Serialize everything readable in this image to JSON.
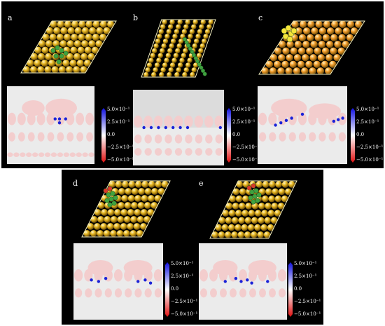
{
  "panels": [
    {
      "id": "a",
      "label": "a",
      "metal": "gold",
      "adsorbate": "green-cluster"
    },
    {
      "id": "b",
      "label": "b",
      "metal": "gold",
      "adsorbate": "green-chain"
    },
    {
      "id": "c",
      "label": "c",
      "metal": "orange",
      "adsorbate": "yellow-cluster"
    },
    {
      "id": "d",
      "label": "d",
      "metal": "gold",
      "adsorbate": "green-red-cluster"
    },
    {
      "id": "e",
      "label": "e",
      "metal": "gold",
      "adsorbate": "green-red-cluster"
    }
  ],
  "colorbar": {
    "ticks": [
      "5.0×10⁻¹",
      "2.5×10⁻¹",
      "0.0",
      "−2.5×10⁻¹",
      "−5.0×10⁻¹"
    ],
    "colors": {
      "max": "#1010e0",
      "mid": "#ffffff",
      "min": "#e01010"
    }
  },
  "colors": {
    "background": "#000000",
    "gold": "#e8b820",
    "orange": "#f09a28",
    "adsorbate_green": "#3fa23f",
    "adsorbate_red": "#d83a2a",
    "slice_bg": "#ebebeb",
    "slice_atom": "#f3cdcd"
  }
}
